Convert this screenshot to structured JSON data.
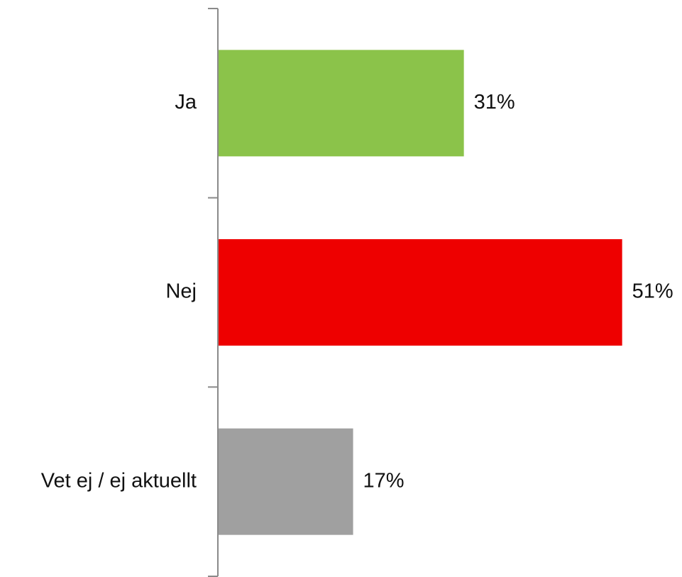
{
  "chart_data": {
    "type": "bar",
    "orientation": "horizontal",
    "categories": [
      "Ja",
      "Nej",
      "Vet ej / ej aktuellt"
    ],
    "values": [
      31,
      51,
      17
    ],
    "value_labels": [
      "31%",
      "51%",
      "17%"
    ],
    "colors": [
      "#8bc34a",
      "#ee0000",
      "#a0a0a0"
    ],
    "xlim": [
      0,
      51
    ],
    "grid": false,
    "legend": "none"
  }
}
